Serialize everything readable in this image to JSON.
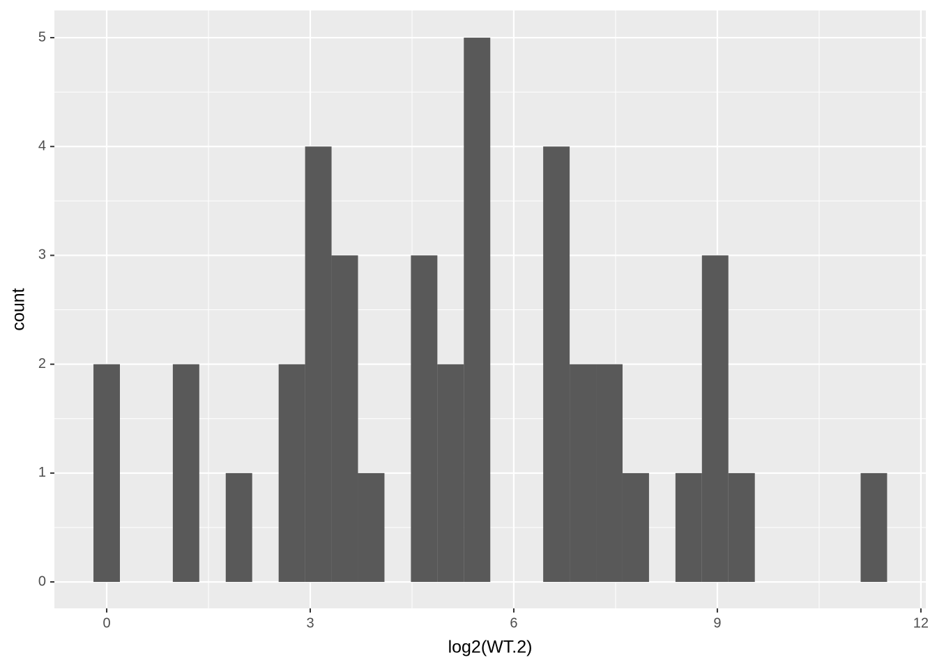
{
  "chart_data": {
    "type": "histogram",
    "x_label": "log2(WT.2)",
    "y_label": "count",
    "bins": [
      -0.195,
      0.1949,
      0.5848,
      0.9747,
      1.3646,
      1.7545,
      2.1444,
      2.5343,
      2.9242,
      3.3141,
      3.704,
      4.0939,
      4.4838,
      4.8737,
      5.2636,
      5.6535,
      6.0434,
      6.4333,
      6.8232,
      7.2131,
      7.603,
      7.9929,
      8.3828,
      8.7727,
      9.1626,
      9.5525,
      9.9424,
      10.3323,
      10.7222,
      11.1121,
      11.502
    ],
    "values": [
      2,
      0,
      0,
      2,
      0,
      1,
      0,
      2,
      4,
      3,
      1,
      0,
      3,
      2,
      5,
      0,
      0,
      4,
      2,
      2,
      1,
      0,
      1,
      3,
      1,
      0,
      0,
      0,
      0,
      1
    ],
    "color": "#595959",
    "xlim": [
      -0.771,
      12.073
    ],
    "xticks": [
      0,
      3,
      6,
      9,
      12
    ],
    "ylim": [
      -0.243,
      5.25
    ],
    "yticks": [
      0,
      1,
      2,
      3,
      4,
      5
    ],
    "grid": true
  }
}
